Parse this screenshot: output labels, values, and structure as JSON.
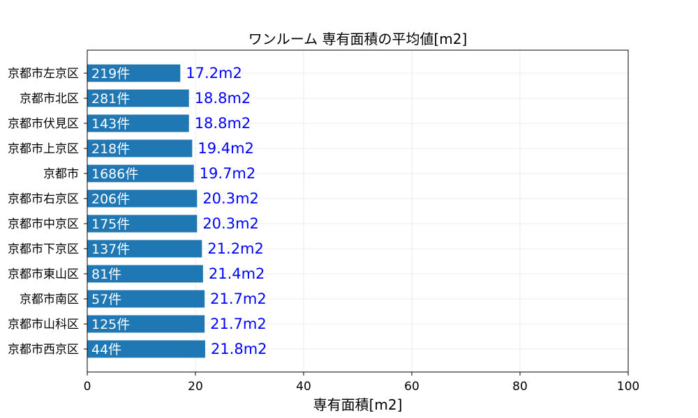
{
  "colors": {
    "bar": "#1f77b4",
    "value_label": "#0000ff",
    "count_label": "#ffffff",
    "grid": "#e6e6e6",
    "axes": "#000000"
  },
  "chart_data": {
    "type": "bar",
    "orientation": "horizontal",
    "title": "ワンルーム 専有面積の平均値[m2]",
    "xlabel": "専有面積[m2]",
    "ylabel": "",
    "xlim": [
      0,
      100
    ],
    "xticks": [
      "0",
      "20",
      "40",
      "60",
      "80",
      "100"
    ],
    "grid": true,
    "categories": [
      "京都市左京区",
      "京都市北区",
      "京都市伏見区",
      "京都市上京区",
      "京都市",
      "京都市右京区",
      "京都市中京区",
      "京都市下京区",
      "京都市東山区",
      "京都市南区",
      "京都市山科区",
      "京都市西京区"
    ],
    "values": [
      17.2,
      18.8,
      18.8,
      19.4,
      19.7,
      20.3,
      20.3,
      21.2,
      21.4,
      21.7,
      21.7,
      21.8
    ],
    "value_labels": [
      "17.2m2",
      "18.8m2",
      "18.8m2",
      "19.4m2",
      "19.7m2",
      "20.3m2",
      "20.3m2",
      "21.2m2",
      "21.4m2",
      "21.7m2",
      "21.7m2",
      "21.8m2"
    ],
    "count_labels": [
      "219件",
      "281件",
      "143件",
      "218件",
      "1686件",
      "206件",
      "175件",
      "137件",
      "81件",
      "57件",
      "125件",
      "44件"
    ]
  }
}
